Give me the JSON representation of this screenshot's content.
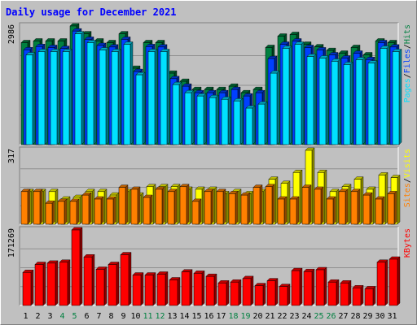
{
  "title": "Daily usage for December 2021",
  "colors": {
    "hits": "#008040",
    "files": "#0040ff",
    "pages": "#00e0ff",
    "visits": "#ffff00",
    "sites": "#ff8000",
    "kbytes": "#ff0000",
    "bg": "#c0c0c0",
    "weekend_day": "#008040",
    "weekday": "#000000"
  },
  "chart_data": [
    {
      "type": "bar",
      "panel": "hits-files-pages",
      "y_max_label": "2986",
      "legend": [
        "Pages",
        "Files",
        "Hits"
      ],
      "categories": [
        "1",
        "2",
        "3",
        "4",
        "5",
        "6",
        "7",
        "8",
        "9",
        "10",
        "11",
        "12",
        "13",
        "14",
        "15",
        "16",
        "17",
        "18",
        "19",
        "20",
        "21",
        "22",
        "23",
        "24",
        "25",
        "26",
        "27",
        "28",
        "29",
        "30",
        "31"
      ],
      "series": [
        {
          "name": "Hits",
          "values": [
            2567,
            2608,
            2608,
            2608,
            2986,
            2789,
            2608,
            2567,
            2789,
            1921,
            2567,
            2567,
            1798,
            1593,
            1388,
            1388,
            1388,
            1470,
            1306,
            1388,
            2445,
            2730,
            2772,
            2526,
            2462,
            2370,
            2301,
            2445,
            2260,
            2608,
            2567
          ]
        },
        {
          "name": "Files",
          "values": [
            2388,
            2469,
            2445,
            2420,
            2860,
            2650,
            2496,
            2457,
            2650,
            1840,
            2467,
            2457,
            1660,
            1470,
            1306,
            1306,
            1306,
            1388,
            1224,
            1306,
            2166,
            2526,
            2608,
            2445,
            2384,
            2260,
            2178,
            2301,
            2142,
            2567,
            2457
          ]
        },
        {
          "name": "Pages",
          "values": [
            2260,
            2342,
            2342,
            2342,
            2789,
            2567,
            2382,
            2342,
            2526,
            1757,
            2342,
            2342,
            1511,
            1306,
            1224,
            1183,
            1141,
            1100,
            919,
            1020,
            1798,
            2424,
            2526,
            2219,
            2178,
            2098,
            2016,
            2138,
            2054,
            2424,
            2342
          ]
        }
      ]
    },
    {
      "type": "bar",
      "panel": "visits-sites",
      "y_max_label": "317",
      "legend": [
        "Sites",
        "Visits"
      ],
      "categories": [
        "1",
        "2",
        "3",
        "4",
        "5",
        "6",
        "7",
        "8",
        "9",
        "10",
        "11",
        "12",
        "13",
        "14",
        "15",
        "16",
        "17",
        "18",
        "19",
        "20",
        "21",
        "22",
        "23",
        "24",
        "25",
        "26",
        "27",
        "28",
        "29",
        "30",
        "31"
      ],
      "series": [
        {
          "name": "Visits",
          "values": [
            140,
            140,
            140,
            108,
            115,
            140,
            140,
            125,
            140,
            125,
            161,
            161,
            161,
            150,
            150,
            150,
            131,
            140,
            131,
            140,
            193,
            175,
            222,
            317,
            222,
            140,
            161,
            193,
            150,
            211,
            200
          ]
        },
        {
          "name": "Sites",
          "values": [
            140,
            140,
            90,
            98,
            98,
            125,
            108,
            108,
            158,
            150,
            115,
            150,
            140,
            161,
            98,
            140,
            140,
            131,
            125,
            158,
            161,
            108,
            108,
            158,
            150,
            108,
            140,
            140,
            125,
            108,
            131
          ]
        }
      ]
    },
    {
      "type": "bar",
      "panel": "kbytes",
      "y_max_label": "171269",
      "legend": [
        "KBytes"
      ],
      "categories": [
        "1",
        "2",
        "3",
        "4",
        "5",
        "6",
        "7",
        "8",
        "9",
        "10",
        "11",
        "12",
        "13",
        "14",
        "15",
        "16",
        "17",
        "18",
        "19",
        "20",
        "21",
        "22",
        "23",
        "24",
        "25",
        "26",
        "27",
        "28",
        "29",
        "30",
        "31"
      ],
      "series": [
        {
          "name": "KBytes",
          "values": [
            75000,
            93000,
            96000,
            98000,
            171269,
            110000,
            82000,
            93000,
            115000,
            69000,
            69000,
            71000,
            58000,
            76000,
            73000,
            66000,
            51000,
            53000,
            61000,
            45000,
            56000,
            43000,
            79000,
            77000,
            81000,
            53000,
            51000,
            40000,
            38000,
            98000,
            105000
          ]
        }
      ]
    }
  ],
  "weekend_days": [
    "4",
    "5",
    "11",
    "12",
    "18",
    "19",
    "25",
    "26"
  ]
}
